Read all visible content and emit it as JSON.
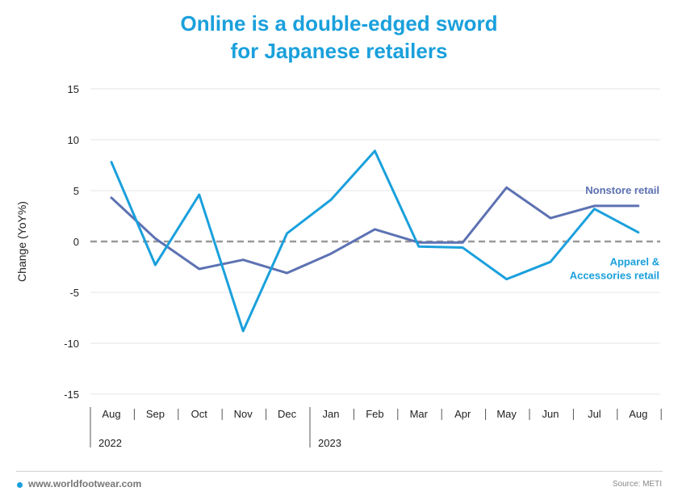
{
  "title": {
    "line1": "Online is a double-edged sword",
    "line2": "for Japanese retailers"
  },
  "colors": {
    "title": "#1aa0dc",
    "nonstore": "#5d72b3",
    "apparel": "#1aa0dc",
    "zero_line": "#999999",
    "grid": "#e6e6e6"
  },
  "chart_data": {
    "type": "line",
    "ylabel": "Change (YoY%)",
    "xlabel": "",
    "ylim": [
      -15,
      15
    ],
    "yticks": [
      15,
      10,
      5,
      0,
      -5,
      -10,
      -15
    ],
    "categories": [
      "Aug",
      "Sep",
      "Oct",
      "Nov",
      "Dec",
      "Jan",
      "Feb",
      "Mar",
      "Apr",
      "May",
      "Jun",
      "Jul",
      "Aug"
    ],
    "years": [
      {
        "label": "2022",
        "start_index": 0
      },
      {
        "label": "2023",
        "start_index": 5
      }
    ],
    "series": [
      {
        "name": "Nonstore retail",
        "label_lines": [
          "Nonstore retail"
        ],
        "color": "#5d72b3",
        "values": [
          4.3,
          0.3,
          -2.7,
          -1.8,
          -3.1,
          -1.2,
          1.2,
          -0.1,
          -0.1,
          5.3,
          2.3,
          3.5,
          3.5
        ]
      },
      {
        "name": "Apparel & Accessories retail",
        "label_lines": [
          "Apparel &",
          "Accessories retail"
        ],
        "color": "#1aa0dc",
        "values": [
          7.8,
          -2.3,
          4.6,
          -8.8,
          0.8,
          4.1,
          8.9,
          -0.5,
          -0.6,
          -3.7,
          -2.0,
          3.2,
          0.9
        ]
      }
    ],
    "grid": true,
    "zero_line": "dashed",
    "legend": "inline labels at right end of lines"
  },
  "footer": {
    "website": "www.worldfootwear.com",
    "source": "Source: METI"
  }
}
